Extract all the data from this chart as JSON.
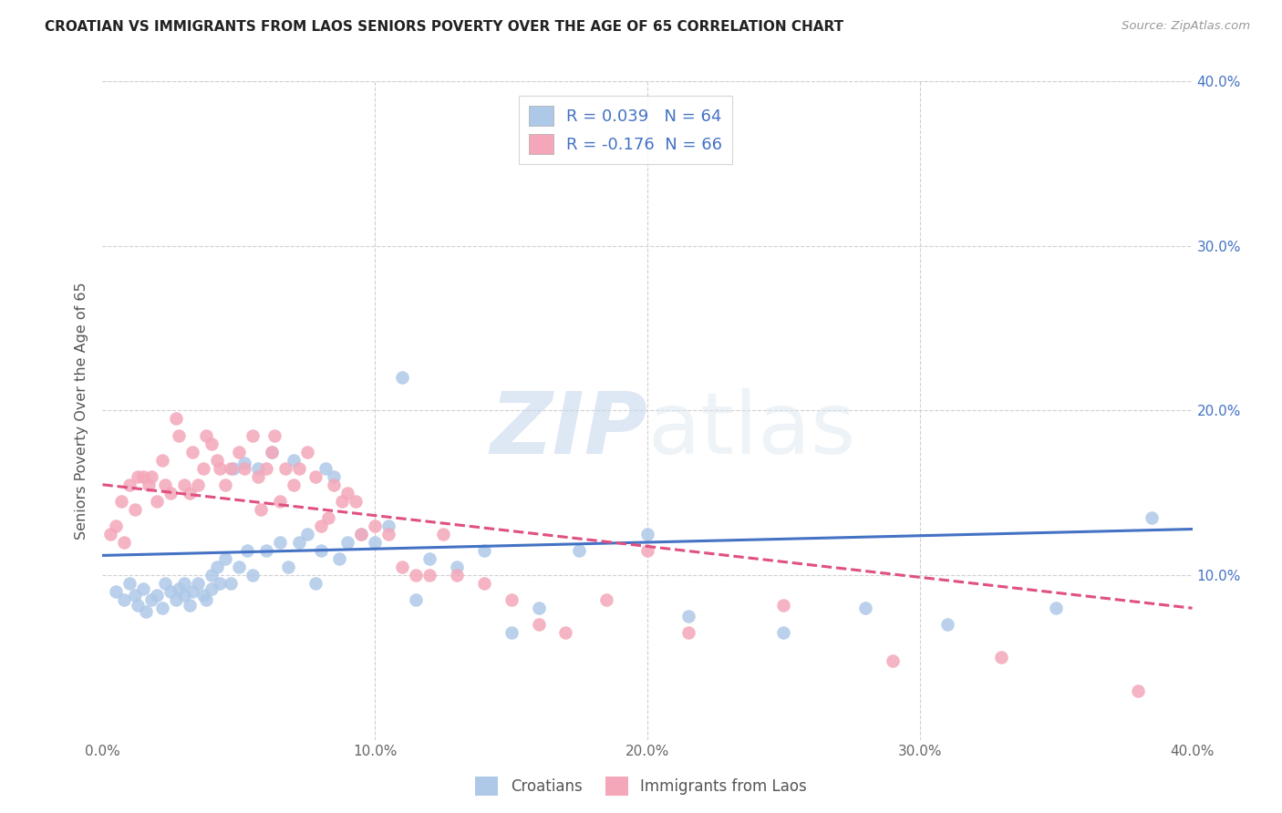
{
  "title": "CROATIAN VS IMMIGRANTS FROM LAOS SENIORS POVERTY OVER THE AGE OF 65 CORRELATION CHART",
  "source": "Source: ZipAtlas.com",
  "ylabel": "Seniors Poverty Over the Age of 65",
  "xlim": [
    0.0,
    0.4
  ],
  "ylim": [
    0.0,
    0.4
  ],
  "xticks": [
    0.0,
    0.1,
    0.2,
    0.3,
    0.4
  ],
  "yticks": [
    0.1,
    0.2,
    0.3,
    0.4
  ],
  "xticklabels": [
    "0.0%",
    "10.0%",
    "20.0%",
    "30.0%",
    "40.0%"
  ],
  "yticklabels": [
    "10.0%",
    "20.0%",
    "30.0%",
    "40.0%"
  ],
  "blue_R": 0.039,
  "blue_N": 64,
  "pink_R": -0.176,
  "pink_N": 66,
  "blue_color": "#aec8e8",
  "pink_color": "#f4a7b9",
  "blue_line_color": "#4472c4",
  "pink_line_color": "#e05080",
  "legend_labels": [
    "Croatians",
    "Immigrants from Laos"
  ],
  "blue_x": [
    0.005,
    0.008,
    0.01,
    0.012,
    0.013,
    0.015,
    0.016,
    0.018,
    0.02,
    0.022,
    0.023,
    0.025,
    0.027,
    0.028,
    0.03,
    0.03,
    0.032,
    0.033,
    0.035,
    0.037,
    0.038,
    0.04,
    0.04,
    0.042,
    0.043,
    0.045,
    0.047,
    0.048,
    0.05,
    0.052,
    0.053,
    0.055,
    0.057,
    0.06,
    0.062,
    0.065,
    0.068,
    0.07,
    0.072,
    0.075,
    0.078,
    0.08,
    0.082,
    0.085,
    0.087,
    0.09,
    0.095,
    0.1,
    0.105,
    0.11,
    0.115,
    0.12,
    0.13,
    0.14,
    0.15,
    0.16,
    0.175,
    0.2,
    0.215,
    0.25,
    0.28,
    0.31,
    0.35,
    0.385
  ],
  "blue_y": [
    0.09,
    0.085,
    0.095,
    0.088,
    0.082,
    0.092,
    0.078,
    0.085,
    0.088,
    0.08,
    0.095,
    0.09,
    0.085,
    0.092,
    0.095,
    0.088,
    0.082,
    0.09,
    0.095,
    0.088,
    0.085,
    0.1,
    0.092,
    0.105,
    0.095,
    0.11,
    0.095,
    0.165,
    0.105,
    0.168,
    0.115,
    0.1,
    0.165,
    0.115,
    0.175,
    0.12,
    0.105,
    0.17,
    0.12,
    0.125,
    0.095,
    0.115,
    0.165,
    0.16,
    0.11,
    0.12,
    0.125,
    0.12,
    0.13,
    0.22,
    0.085,
    0.11,
    0.105,
    0.115,
    0.065,
    0.08,
    0.115,
    0.125,
    0.075,
    0.065,
    0.08,
    0.07,
    0.08,
    0.135
  ],
  "pink_x": [
    0.003,
    0.005,
    0.007,
    0.008,
    0.01,
    0.012,
    0.013,
    0.015,
    0.017,
    0.018,
    0.02,
    0.022,
    0.023,
    0.025,
    0.027,
    0.028,
    0.03,
    0.032,
    0.033,
    0.035,
    0.037,
    0.038,
    0.04,
    0.042,
    0.043,
    0.045,
    0.047,
    0.05,
    0.052,
    0.055,
    0.057,
    0.058,
    0.06,
    0.062,
    0.063,
    0.065,
    0.067,
    0.07,
    0.072,
    0.075,
    0.078,
    0.08,
    0.083,
    0.085,
    0.088,
    0.09,
    0.093,
    0.095,
    0.1,
    0.105,
    0.11,
    0.115,
    0.12,
    0.125,
    0.13,
    0.14,
    0.15,
    0.16,
    0.17,
    0.185,
    0.2,
    0.215,
    0.25,
    0.29,
    0.33,
    0.38
  ],
  "pink_y": [
    0.125,
    0.13,
    0.145,
    0.12,
    0.155,
    0.14,
    0.16,
    0.16,
    0.155,
    0.16,
    0.145,
    0.17,
    0.155,
    0.15,
    0.195,
    0.185,
    0.155,
    0.15,
    0.175,
    0.155,
    0.165,
    0.185,
    0.18,
    0.17,
    0.165,
    0.155,
    0.165,
    0.175,
    0.165,
    0.185,
    0.16,
    0.14,
    0.165,
    0.175,
    0.185,
    0.145,
    0.165,
    0.155,
    0.165,
    0.175,
    0.16,
    0.13,
    0.135,
    0.155,
    0.145,
    0.15,
    0.145,
    0.125,
    0.13,
    0.125,
    0.105,
    0.1,
    0.1,
    0.125,
    0.1,
    0.095,
    0.085,
    0.07,
    0.065,
    0.085,
    0.115,
    0.065,
    0.082,
    0.048,
    0.05,
    0.03
  ]
}
